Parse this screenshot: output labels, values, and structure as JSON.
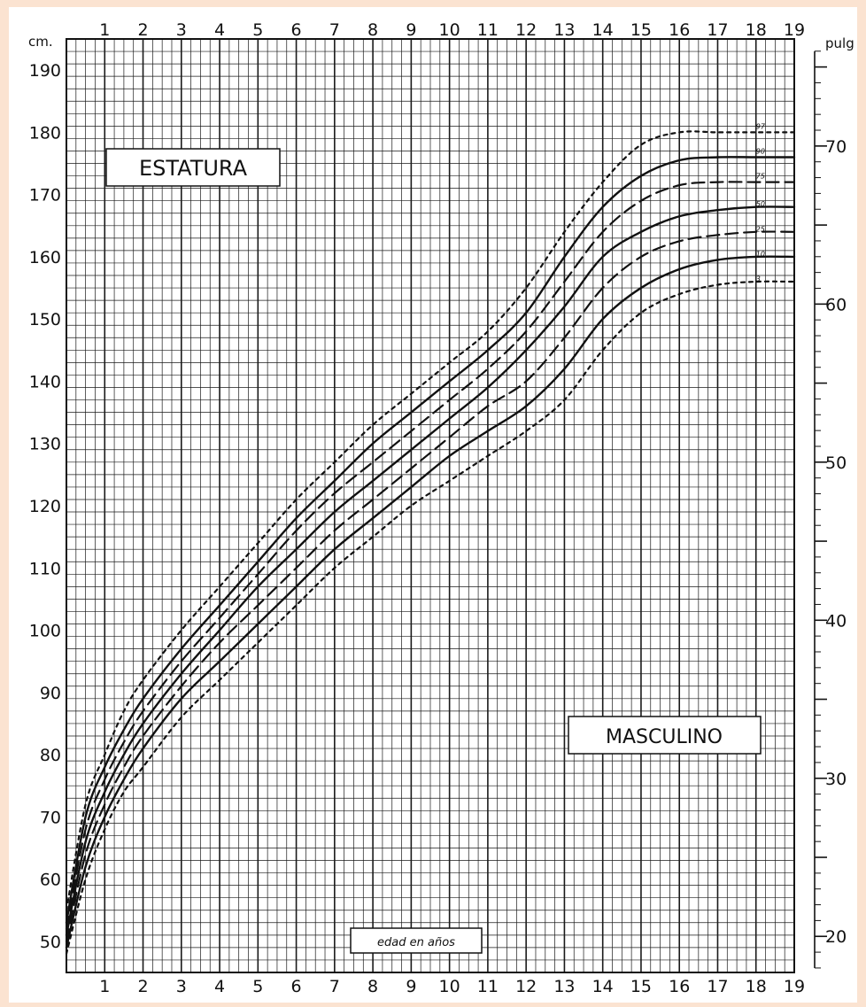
{
  "chart_data": {
    "type": "line",
    "title": "ESTATURA",
    "subtitle": "MASCULINO",
    "xlabel": "edad en años",
    "ylabel_left_unit": "cm.",
    "ylabel_right_unit": "pulg",
    "xlim": [
      0,
      19
    ],
    "ylim": [
      45,
      195
    ],
    "x_ticks": [
      "1",
      "2",
      "3",
      "4",
      "5",
      "6",
      "7",
      "8",
      "9",
      "10",
      "11",
      "12",
      "13",
      "14",
      "15",
      "16",
      "17",
      "18",
      "19"
    ],
    "y_ticks_cm": [
      "50",
      "60",
      "70",
      "80",
      "90",
      "100",
      "110",
      "120",
      "130",
      "140",
      "150",
      "160",
      "170",
      "180",
      "190"
    ],
    "y_ticks_in": [
      "20",
      "30",
      "40",
      "50",
      "60",
      "70"
    ],
    "grid": true,
    "x": [
      0,
      0.5,
      1,
      1.5,
      2,
      3,
      4,
      5,
      6,
      7,
      8,
      9,
      10,
      11,
      12,
      13,
      14,
      15,
      16,
      17,
      18,
      19
    ],
    "series": [
      {
        "name": "97",
        "style": "dotted",
        "values": [
          55,
          72,
          80,
          87,
          92,
          100,
          107,
          114,
          121,
          127,
          133,
          138,
          143,
          148,
          155,
          164,
          172,
          178,
          180,
          180,
          180,
          180
        ]
      },
      {
        "name": "90",
        "style": "solid",
        "values": [
          53,
          70,
          78,
          84,
          89,
          97,
          104,
          111,
          118,
          124,
          130,
          135,
          140,
          145,
          151,
          160,
          168,
          173,
          175.5,
          176,
          176,
          176
        ]
      },
      {
        "name": "75",
        "style": "dashed",
        "values": [
          52,
          68,
          76,
          82,
          87,
          95,
          102,
          109,
          116,
          122,
          127,
          132,
          137,
          142,
          148,
          156,
          164,
          169,
          171.5,
          172,
          172,
          172
        ]
      },
      {
        "name": "50",
        "style": "solid",
        "values": [
          51,
          66,
          74,
          80,
          85,
          93,
          100,
          107,
          113,
          119,
          124,
          129,
          134,
          139,
          145,
          152,
          160,
          164,
          166.5,
          167.5,
          168,
          168
        ]
      },
      {
        "name": "25",
        "style": "dashed",
        "values": [
          50,
          64,
          72,
          78,
          83,
          91,
          98,
          104,
          110,
          116,
          121,
          126,
          131,
          136,
          140,
          147,
          155,
          160,
          162.5,
          163.5,
          164,
          164
        ]
      },
      {
        "name": "10",
        "style": "solid",
        "values": [
          49,
          62,
          70,
          76,
          81,
          89,
          95,
          101,
          107,
          113,
          118,
          123,
          128,
          132,
          136,
          142,
          150,
          155,
          158,
          159.5,
          160,
          160
        ]
      },
      {
        "name": "3",
        "style": "dotted",
        "values": [
          48,
          60,
          68,
          74,
          78,
          86,
          92,
          98,
          104,
          110,
          115,
          120,
          124,
          128,
          132,
          137,
          145,
          151,
          154,
          155.5,
          156,
          156
        ]
      }
    ]
  }
}
